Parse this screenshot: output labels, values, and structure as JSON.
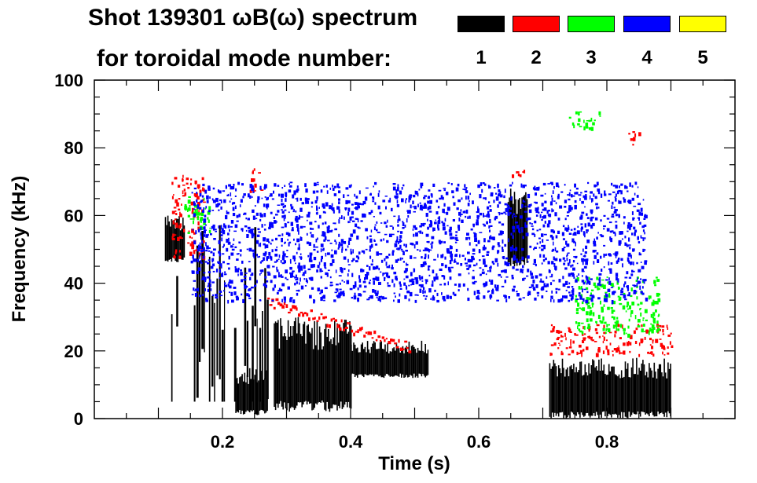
{
  "title_line1": "Shot 139301 ωB(ω) spectrum",
  "title_line2": "for toroidal mode number:",
  "legend": [
    {
      "label": "1",
      "color": "#000000"
    },
    {
      "label": "2",
      "color": "#ff0000"
    },
    {
      "label": "3",
      "color": "#00ff00"
    },
    {
      "label": "4",
      "color": "#0000ff"
    },
    {
      "label": "5",
      "color": "#ffff00"
    }
  ],
  "chart_data": {
    "type": "heatmap",
    "title": "Shot 139301 ωB(ω) spectrum",
    "xlabel": "Time (s)",
    "ylabel": "Frequency (kHz)",
    "xlim": [
      0.0,
      1.0
    ],
    "ylim": [
      0,
      100
    ],
    "xticks": [
      "0.2",
      "0.4",
      "0.6",
      "0.8"
    ],
    "xtick_values": [
      0.2,
      0.4,
      0.6,
      0.8
    ],
    "yticks": [
      "0",
      "20",
      "40",
      "60",
      "80",
      "100"
    ],
    "ytick_values": [
      0,
      20,
      40,
      60,
      80,
      100
    ],
    "features": [
      {
        "name": "n1-early-burst",
        "mode": 1,
        "t": [
          0.11,
          0.14
        ],
        "f": [
          46,
          60
        ]
      },
      {
        "name": "n1-comb",
        "mode": 1,
        "t": [
          0.12,
          0.27
        ],
        "f": [
          5,
          58
        ]
      },
      {
        "name": "n1-low-02",
        "mode": 1,
        "t": [
          0.22,
          0.27
        ],
        "f": [
          1,
          15
        ]
      },
      {
        "name": "n1-mid",
        "mode": 1,
        "t": [
          0.28,
          0.4
        ],
        "f": [
          2,
          30
        ]
      },
      {
        "name": "n1-tail",
        "mode": 1,
        "t": [
          0.4,
          0.52
        ],
        "f": [
          12,
          23
        ]
      },
      {
        "name": "n1-066",
        "mode": 1,
        "t": [
          0.645,
          0.675
        ],
        "f": [
          45,
          68
        ]
      },
      {
        "name": "n1-late-block",
        "mode": 1,
        "t": [
          0.71,
          0.9
        ],
        "f": [
          0,
          18
        ]
      },
      {
        "name": "n2-early",
        "mode": 2,
        "t": [
          0.12,
          0.17
        ],
        "f": [
          48,
          72
        ]
      },
      {
        "name": "n2-sweep",
        "mode": 2,
        "t": [
          0.27,
          0.49
        ],
        "f": [
          19,
          35
        ]
      },
      {
        "name": "n2-070",
        "mode": 2,
        "t": [
          0.24,
          0.26
        ],
        "f": [
          67,
          74
        ]
      },
      {
        "name": "n2-066",
        "mode": 2,
        "t": [
          0.65,
          0.67
        ],
        "f": [
          72,
          74
        ]
      },
      {
        "name": "n2-late",
        "mode": 2,
        "t": [
          0.71,
          0.9
        ],
        "f": [
          19,
          28
        ]
      },
      {
        "name": "n2-83k",
        "mode": 2,
        "t": [
          0.83,
          0.85
        ],
        "f": [
          81,
          85
        ]
      },
      {
        "name": "n3-early",
        "mode": 3,
        "t": [
          0.14,
          0.18
        ],
        "f": [
          55,
          66
        ]
      },
      {
        "name": "n3-late",
        "mode": 3,
        "t": [
          0.75,
          0.88
        ],
        "f": [
          25,
          42
        ]
      },
      {
        "name": "n3-88k",
        "mode": 3,
        "t": [
          0.74,
          0.79
        ],
        "f": [
          86,
          91
        ]
      },
      {
        "name": "n4-spots",
        "mode": 4,
        "t": [
          0.15,
          0.86
        ],
        "f": [
          35,
          70
        ]
      }
    ]
  }
}
